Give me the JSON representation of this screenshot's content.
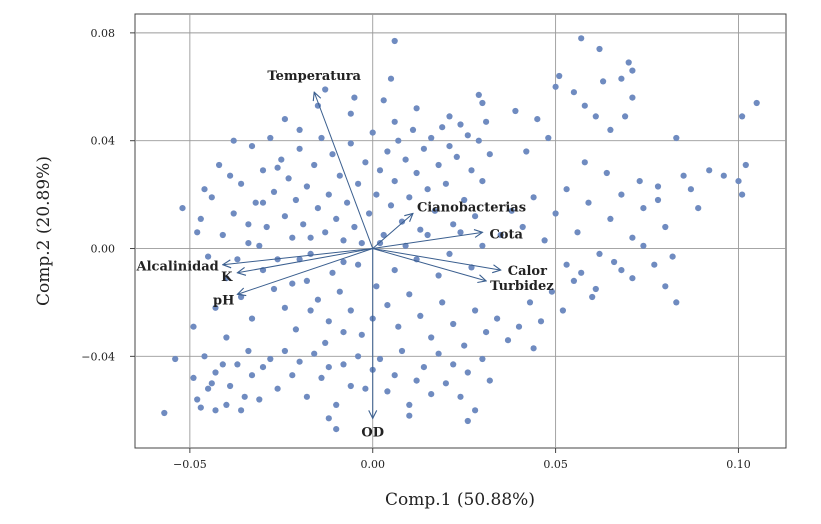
{
  "chart_data": {
    "type": "scatter",
    "xlabel": "Comp.1 (50.88%)",
    "ylabel": "Comp.2 (20.89%)",
    "xlim": [
      -0.065,
      0.113
    ],
    "ylim": [
      -0.074,
      0.087
    ],
    "xticks": [
      -0.05,
      0.0,
      0.05,
      0.1
    ],
    "xtick_labels": [
      "−0.05",
      "0.00",
      "0.05",
      "0.10"
    ],
    "yticks": [
      -0.04,
      0.0,
      0.04,
      0.08
    ],
    "ytick_labels": [
      "−0.04",
      "0.00",
      "0.04",
      "0.08"
    ],
    "grid": true,
    "point_color": "#6f8bc0",
    "vector_color": "#3b5f8f",
    "points": [
      [
        -0.057,
        -0.061
      ],
      [
        -0.054,
        -0.041
      ],
      [
        -0.049,
        -0.048
      ],
      [
        -0.048,
        -0.056
      ],
      [
        -0.047,
        -0.059
      ],
      [
        -0.045,
        -0.052
      ],
      [
        -0.044,
        -0.05
      ],
      [
        -0.043,
        -0.046
      ],
      [
        -0.043,
        -0.06
      ],
      [
        -0.041,
        -0.043
      ],
      [
        -0.04,
        -0.058
      ],
      [
        -0.039,
        -0.051
      ],
      [
        -0.037,
        -0.043
      ],
      [
        -0.036,
        -0.06
      ],
      [
        -0.035,
        -0.055
      ],
      [
        -0.034,
        -0.038
      ],
      [
        -0.033,
        -0.047
      ],
      [
        -0.031,
        -0.056
      ],
      [
        -0.03,
        -0.044
      ],
      [
        -0.028,
        -0.041
      ],
      [
        -0.026,
        -0.052
      ],
      [
        -0.024,
        -0.038
      ],
      [
        -0.022,
        -0.047
      ],
      [
        -0.02,
        -0.042
      ],
      [
        -0.018,
        -0.055
      ],
      [
        -0.016,
        -0.039
      ],
      [
        -0.014,
        -0.048
      ],
      [
        -0.012,
        -0.044
      ],
      [
        -0.01,
        -0.058
      ],
      [
        -0.008,
        -0.043
      ],
      [
        -0.006,
        -0.051
      ],
      [
        -0.004,
        -0.04
      ],
      [
        -0.002,
        -0.052
      ],
      [
        0.0,
        -0.045
      ],
      [
        0.002,
        -0.041
      ],
      [
        0.004,
        -0.053
      ],
      [
        0.006,
        -0.047
      ],
      [
        0.008,
        -0.038
      ],
      [
        0.01,
        -0.058
      ],
      [
        0.012,
        -0.049
      ],
      [
        0.014,
        -0.044
      ],
      [
        0.016,
        -0.054
      ],
      [
        0.018,
        -0.039
      ],
      [
        0.02,
        -0.05
      ],
      [
        0.022,
        -0.043
      ],
      [
        0.024,
        -0.055
      ],
      [
        0.026,
        -0.046
      ],
      [
        0.028,
        -0.06
      ],
      [
        0.03,
        -0.041
      ],
      [
        0.032,
        -0.049
      ],
      [
        -0.01,
        -0.067
      ],
      [
        0.01,
        -0.062
      ],
      [
        0.026,
        -0.064
      ],
      [
        -0.012,
        -0.063
      ],
      [
        -0.052,
        0.015
      ],
      [
        -0.047,
        0.011
      ],
      [
        -0.044,
        0.019
      ],
      [
        -0.041,
        0.005
      ],
      [
        -0.038,
        0.013
      ],
      [
        -0.036,
        0.024
      ],
      [
        -0.034,
        0.002
      ],
      [
        -0.032,
        0.017
      ],
      [
        -0.03,
        0.029
      ],
      [
        -0.029,
        0.008
      ],
      [
        -0.027,
        0.021
      ],
      [
        -0.026,
        -0.004
      ],
      [
        -0.025,
        0.033
      ],
      [
        -0.024,
        0.012
      ],
      [
        -0.023,
        0.026
      ],
      [
        -0.022,
        0.004
      ],
      [
        -0.021,
        0.018
      ],
      [
        -0.02,
        0.037
      ],
      [
        -0.019,
        0.009
      ],
      [
        -0.018,
        0.023
      ],
      [
        -0.017,
        -0.002
      ],
      [
        -0.016,
        0.031
      ],
      [
        -0.015,
        0.015
      ],
      [
        -0.014,
        0.041
      ],
      [
        -0.013,
        0.006
      ],
      [
        -0.012,
        0.02
      ],
      [
        -0.011,
        0.035
      ],
      [
        -0.01,
        0.011
      ],
      [
        -0.009,
        0.027
      ],
      [
        -0.008,
        -0.005
      ],
      [
        -0.007,
        0.017
      ],
      [
        -0.006,
        0.039
      ],
      [
        -0.005,
        0.008
      ],
      [
        -0.004,
        0.024
      ],
      [
        -0.003,
        0.002
      ],
      [
        -0.002,
        0.032
      ],
      [
        -0.001,
        0.013
      ],
      [
        0.0,
        0.043
      ],
      [
        0.001,
        0.02
      ],
      [
        0.002,
        0.029
      ],
      [
        0.003,
        0.005
      ],
      [
        0.004,
        0.036
      ],
      [
        0.005,
        0.016
      ],
      [
        0.006,
        0.025
      ],
      [
        0.007,
        0.04
      ],
      [
        0.008,
        0.01
      ],
      [
        0.009,
        0.033
      ],
      [
        0.01,
        0.019
      ],
      [
        0.011,
        0.044
      ],
      [
        0.012,
        0.028
      ],
      [
        0.013,
        0.007
      ],
      [
        0.014,
        0.037
      ],
      [
        0.015,
        0.022
      ],
      [
        0.016,
        0.041
      ],
      [
        0.017,
        0.014
      ],
      [
        0.018,
        0.031
      ],
      [
        0.019,
        0.045
      ],
      [
        0.02,
        0.024
      ],
      [
        0.021,
        0.038
      ],
      [
        0.022,
        0.009
      ],
      [
        0.023,
        0.034
      ],
      [
        0.024,
        0.046
      ],
      [
        0.025,
        0.018
      ],
      [
        0.026,
        0.042
      ],
      [
        0.027,
        0.029
      ],
      [
        0.028,
        0.012
      ],
      [
        0.029,
        0.04
      ],
      [
        0.03,
        0.025
      ],
      [
        0.031,
        0.047
      ],
      [
        0.032,
        0.035
      ],
      [
        -0.024,
        0.048
      ],
      [
        -0.015,
        0.053
      ],
      [
        -0.006,
        0.05
      ],
      [
        0.003,
        0.055
      ],
      [
        0.012,
        0.052
      ],
      [
        0.021,
        0.049
      ],
      [
        0.03,
        0.054
      ],
      [
        0.039,
        0.051
      ],
      [
        -0.02,
        0.044
      ],
      [
        0.006,
        0.047
      ],
      [
        -0.028,
        0.041
      ],
      [
        -0.033,
        0.038
      ],
      [
        -0.038,
        0.04
      ],
      [
        -0.042,
        0.031
      ],
      [
        -0.046,
        0.022
      ],
      [
        -0.048,
        0.006
      ],
      [
        -0.045,
        -0.003
      ],
      [
        -0.04,
        -0.011
      ],
      [
        -0.036,
        -0.018
      ],
      [
        -0.033,
        -0.026
      ],
      [
        -0.03,
        -0.008
      ],
      [
        -0.027,
        -0.015
      ],
      [
        -0.024,
        -0.022
      ],
      [
        -0.021,
        -0.03
      ],
      [
        -0.018,
        -0.012
      ],
      [
        -0.015,
        -0.019
      ],
      [
        -0.012,
        -0.027
      ],
      [
        -0.009,
        -0.016
      ],
      [
        -0.006,
        -0.023
      ],
      [
        -0.003,
        -0.032
      ],
      [
        0.001,
        -0.014
      ],
      [
        0.004,
        -0.021
      ],
      [
        0.007,
        -0.029
      ],
      [
        0.01,
        -0.017
      ],
      [
        0.013,
        -0.025
      ],
      [
        0.016,
        -0.033
      ],
      [
        0.019,
        -0.02
      ],
      [
        0.022,
        -0.028
      ],
      [
        0.025,
        -0.036
      ],
      [
        0.028,
        -0.023
      ],
      [
        0.031,
        -0.031
      ],
      [
        0.034,
        -0.026
      ],
      [
        0.037,
        -0.034
      ],
      [
        0.04,
        -0.029
      ],
      [
        0.043,
        -0.02
      ],
      [
        0.046,
        -0.027
      ],
      [
        0.049,
        -0.016
      ],
      [
        0.052,
        -0.023
      ],
      [
        0.055,
        -0.012
      ],
      [
        0.044,
        -0.037
      ],
      [
        0.035,
        0.005
      ],
      [
        0.038,
        0.014
      ],
      [
        0.041,
        0.008
      ],
      [
        0.044,
        0.019
      ],
      [
        0.047,
        0.003
      ],
      [
        0.05,
        0.013
      ],
      [
        0.053,
        0.022
      ],
      [
        0.056,
        0.006
      ],
      [
        0.059,
        0.017
      ],
      [
        0.062,
        -0.002
      ],
      [
        0.065,
        0.011
      ],
      [
        0.068,
        0.02
      ],
      [
        0.071,
        0.004
      ],
      [
        0.074,
        0.015
      ],
      [
        0.077,
        -0.006
      ],
      [
        0.057,
        -0.009
      ],
      [
        0.061,
        -0.015
      ],
      [
        0.066,
        -0.005
      ],
      [
        0.071,
        -0.011
      ],
      [
        0.08,
        -0.014
      ],
      [
        0.083,
        -0.02
      ],
      [
        0.087,
        0.022
      ],
      [
        0.092,
        0.029
      ],
      [
        0.096,
        0.027
      ],
      [
        0.1,
        0.025
      ],
      [
        0.101,
        0.02
      ],
      [
        0.102,
        0.031
      ],
      [
        0.085,
        0.027
      ],
      [
        0.089,
        0.015
      ],
      [
        0.078,
        0.023
      ],
      [
        0.105,
        0.054
      ],
      [
        0.101,
        0.049
      ],
      [
        0.083,
        0.041
      ],
      [
        0.069,
        0.049
      ],
      [
        0.071,
        0.056
      ],
      [
        0.071,
        0.066
      ],
      [
        0.063,
        0.062
      ],
      [
        0.068,
        0.063
      ],
      [
        0.058,
        0.053
      ],
      [
        0.05,
        0.06
      ],
      [
        0.055,
        0.058
      ],
      [
        0.065,
        0.044
      ],
      [
        0.061,
        0.049
      ],
      [
        0.062,
        0.074
      ],
      [
        0.07,
        0.069
      ],
      [
        0.057,
        0.078
      ],
      [
        0.051,
        0.064
      ],
      [
        0.045,
        0.048
      ],
      [
        0.048,
        0.041
      ],
      [
        0.042,
        0.036
      ],
      [
        0.006,
        0.077
      ],
      [
        0.005,
        0.063
      ],
      [
        -0.005,
        0.056
      ],
      [
        0.029,
        0.057
      ],
      [
        -0.013,
        0.059
      ],
      [
        0.058,
        0.032
      ],
      [
        0.064,
        0.028
      ],
      [
        0.073,
        0.025
      ],
      [
        0.078,
        0.018
      ],
      [
        0.08,
        0.008
      ],
      [
        0.082,
        -0.003
      ],
      [
        0.074,
        0.001
      ],
      [
        0.068,
        -0.008
      ],
      [
        0.06,
        -0.018
      ],
      [
        0.053,
        -0.006
      ],
      [
        -0.02,
        -0.004
      ],
      [
        -0.017,
        0.004
      ],
      [
        -0.011,
        -0.009
      ],
      [
        -0.008,
        0.003
      ],
      [
        -0.004,
        -0.006
      ],
      [
        0.002,
        0.002
      ],
      [
        0.006,
        -0.008
      ],
      [
        0.009,
        0.001
      ],
      [
        0.012,
        -0.004
      ],
      [
        0.015,
        0.005
      ],
      [
        0.018,
        -0.01
      ],
      [
        0.021,
        -0.002
      ],
      [
        0.024,
        0.006
      ],
      [
        0.027,
        -0.007
      ],
      [
        0.03,
        0.001
      ],
      [
        -0.026,
        0.03
      ],
      [
        -0.03,
        0.017
      ],
      [
        -0.034,
        0.009
      ],
      [
        -0.037,
        -0.004
      ],
      [
        -0.031,
        0.001
      ],
      [
        -0.022,
        -0.013
      ],
      [
        -0.017,
        -0.023
      ],
      [
        -0.013,
        -0.035
      ],
      [
        -0.008,
        -0.031
      ],
      [
        0.0,
        -0.026
      ],
      [
        -0.039,
        0.027
      ],
      [
        -0.043,
        -0.022
      ],
      [
        -0.04,
        -0.033
      ],
      [
        -0.046,
        -0.04
      ],
      [
        -0.049,
        -0.029
      ]
    ],
    "vectors": [
      {
        "label": "Temperatura",
        "x": -0.016,
        "y": 0.058
      },
      {
        "label": "Cianobacterias",
        "x": 0.011,
        "y": 0.013
      },
      {
        "label": "Cota",
        "x": 0.03,
        "y": 0.006
      },
      {
        "label": "Calor",
        "x": 0.035,
        "y": -0.008
      },
      {
        "label": "Turbidez",
        "x": 0.031,
        "y": -0.012
      },
      {
        "label": "Alcalinidad",
        "x": -0.041,
        "y": -0.006
      },
      {
        "label": "K",
        "x": -0.037,
        "y": -0.009
      },
      {
        "label": "pH",
        "x": -0.037,
        "y": -0.017
      },
      {
        "label": "OD",
        "x": 0.0,
        "y": -0.063
      }
    ]
  }
}
